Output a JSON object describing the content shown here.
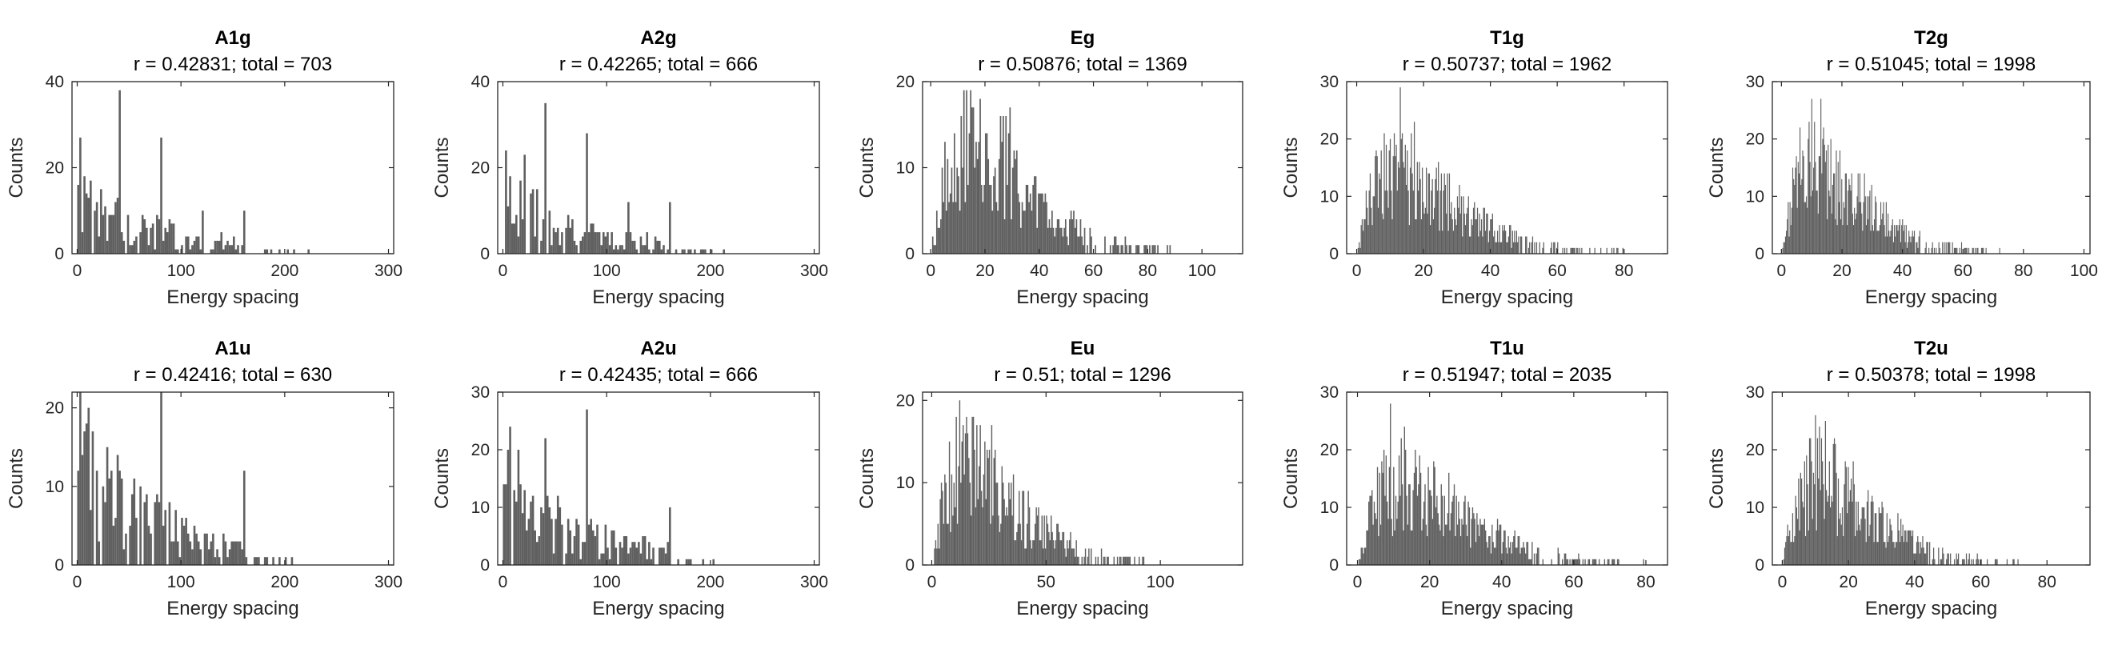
{
  "figure": {
    "bar_color": "#606060",
    "axis_color": "#262626"
  },
  "chart_data": [
    {
      "type": "bar",
      "title": "A1g",
      "subtitle": "r = 0.42831; total = 703",
      "xlabel": "Energy spacing",
      "ylabel": "Counts",
      "xlim": [
        -5,
        305
      ],
      "ylim": [
        0,
        40
      ],
      "xticks": [
        0,
        100,
        200,
        300
      ],
      "yticks": [
        0,
        20,
        40
      ],
      "bin_width": 2,
      "x_max": 290,
      "profile": "spiky",
      "peaks": [
        [
          0,
          16
        ],
        [
          2,
          27
        ],
        [
          6,
          18
        ],
        [
          12,
          17
        ],
        [
          22,
          15
        ],
        [
          40,
          38
        ],
        [
          80,
          27
        ],
        [
          120,
          10
        ],
        [
          160,
          10
        ]
      ],
      "grid": false
    },
    {
      "type": "bar",
      "title": "A2g",
      "subtitle": "r = 0.42265; total = 666",
      "xlabel": "Energy spacing",
      "ylabel": "Counts",
      "xlim": [
        -5,
        305
      ],
      "ylim": [
        0,
        40
      ],
      "xticks": [
        0,
        100,
        200,
        300
      ],
      "yticks": [
        0,
        20,
        40
      ],
      "bin_width": 2,
      "x_max": 290,
      "profile": "spiky",
      "peaks": [
        [
          2,
          24
        ],
        [
          6,
          18
        ],
        [
          20,
          23
        ],
        [
          40,
          35
        ],
        [
          80,
          28
        ],
        [
          120,
          12
        ],
        [
          160,
          12
        ]
      ],
      "grid": false
    },
    {
      "type": "bar",
      "title": "Eg",
      "subtitle": "r = 0.50876; total = 1369",
      "xlabel": "Energy spacing",
      "ylabel": "Counts",
      "xlim": [
        -3,
        115
      ],
      "ylim": [
        0,
        20
      ],
      "xticks": [
        0,
        20,
        40,
        60,
        80,
        100
      ],
      "yticks": [
        0,
        10,
        20
      ],
      "bin_width": 0.5,
      "x_max": 108,
      "profile": "wigner",
      "mode": 14,
      "peak_height": 14,
      "peaks": [
        [
          12,
          19
        ],
        [
          18,
          18
        ],
        [
          29,
          17
        ]
      ],
      "grid": false
    },
    {
      "type": "bar",
      "title": "T1g",
      "subtitle": "r = 0.50737; total = 1962",
      "xlabel": "Energy spacing",
      "ylabel": "Counts",
      "xlim": [
        -3,
        93
      ],
      "ylim": [
        0,
        30
      ],
      "xticks": [
        0,
        20,
        40,
        60,
        80
      ],
      "yticks": [
        0,
        10,
        20,
        30
      ],
      "bin_width": 0.3,
      "x_max": 90,
      "profile": "wigner",
      "mode": 12,
      "peak_height": 15,
      "peaks": [
        [
          13,
          29
        ],
        [
          8,
          21
        ],
        [
          17,
          23
        ]
      ],
      "grid": false
    },
    {
      "type": "bar",
      "title": "T2g",
      "subtitle": "r = 0.51045; total = 1998",
      "xlabel": "Energy spacing",
      "ylabel": "Counts",
      "xlim": [
        -3,
        102
      ],
      "ylim": [
        0,
        30
      ],
      "xticks": [
        0,
        20,
        40,
        60,
        80,
        100
      ],
      "yticks": [
        0,
        10,
        20,
        30
      ],
      "bin_width": 0.3,
      "x_max": 85,
      "profile": "wigner",
      "mode": 11,
      "peak_height": 16,
      "peaks": [
        [
          10,
          27
        ],
        [
          13,
          27
        ],
        [
          6,
          22
        ]
      ],
      "grid": false
    },
    {
      "type": "bar",
      "title": "A1u",
      "subtitle": "r = 0.42416; total = 630",
      "xlabel": "Energy spacing",
      "ylabel": "Counts",
      "xlim": [
        -5,
        305
      ],
      "ylim": [
        0,
        22
      ],
      "xticks": [
        0,
        100,
        200,
        300
      ],
      "yticks": [
        0,
        10,
        20
      ],
      "bin_width": 2,
      "x_max": 290,
      "profile": "spiky",
      "peaks": [
        [
          2,
          22
        ],
        [
          8,
          18
        ],
        [
          80,
          22
        ],
        [
          160,
          12
        ]
      ],
      "grid": false
    },
    {
      "type": "bar",
      "title": "A2u",
      "subtitle": "r = 0.42435; total = 666",
      "xlabel": "Energy spacing",
      "ylabel": "Counts",
      "xlim": [
        -5,
        305
      ],
      "ylim": [
        0,
        30
      ],
      "xticks": [
        0,
        100,
        200,
        300
      ],
      "yticks": [
        0,
        10,
        20,
        30
      ],
      "bin_width": 2,
      "x_max": 290,
      "profile": "spiky",
      "peaks": [
        [
          2,
          14
        ],
        [
          6,
          24
        ],
        [
          40,
          22
        ],
        [
          80,
          27
        ],
        [
          160,
          10
        ]
      ],
      "grid": false
    },
    {
      "type": "bar",
      "title": "Eu",
      "subtitle": "r = 0.51; total = 1296",
      "xlabel": "Energy spacing",
      "ylabel": "Counts",
      "xlim": [
        -4,
        136
      ],
      "ylim": [
        0,
        21
      ],
      "xticks": [
        0,
        50,
        100
      ],
      "yticks": [
        0,
        10,
        20
      ],
      "bin_width": 0.5,
      "x_max": 130,
      "profile": "wigner",
      "mode": 15,
      "peak_height": 13,
      "peaks": [
        [
          12,
          20
        ],
        [
          18,
          18
        ],
        [
          26,
          17
        ]
      ],
      "grid": false
    },
    {
      "type": "bar",
      "title": "T1u",
      "subtitle": "r = 0.51947; total = 2035",
      "xlabel": "Energy spacing",
      "ylabel": "Counts",
      "xlim": [
        -3,
        86
      ],
      "ylim": [
        0,
        30
      ],
      "xticks": [
        0,
        20,
        40,
        60,
        80
      ],
      "yticks": [
        0,
        10,
        20,
        30
      ],
      "bin_width": 0.3,
      "x_max": 82,
      "profile": "wigner",
      "mode": 12,
      "peak_height": 15,
      "peaks": [
        [
          9,
          28
        ],
        [
          13,
          24
        ],
        [
          16,
          20
        ]
      ],
      "grid": false
    },
    {
      "type": "bar",
      "title": "T2u",
      "subtitle": "r = 0.50378; total = 1998",
      "xlabel": "Energy spacing",
      "ylabel": "Counts",
      "xlim": [
        -3,
        93
      ],
      "ylim": [
        0,
        30
      ],
      "xticks": [
        0,
        20,
        40,
        60,
        80
      ],
      "yticks": [
        0,
        10,
        20,
        30
      ],
      "bin_width": 0.3,
      "x_max": 88,
      "profile": "wigner",
      "mode": 11,
      "peak_height": 16,
      "peaks": [
        [
          10,
          26
        ],
        [
          13,
          25
        ],
        [
          16,
          21
        ]
      ],
      "grid": false
    }
  ]
}
